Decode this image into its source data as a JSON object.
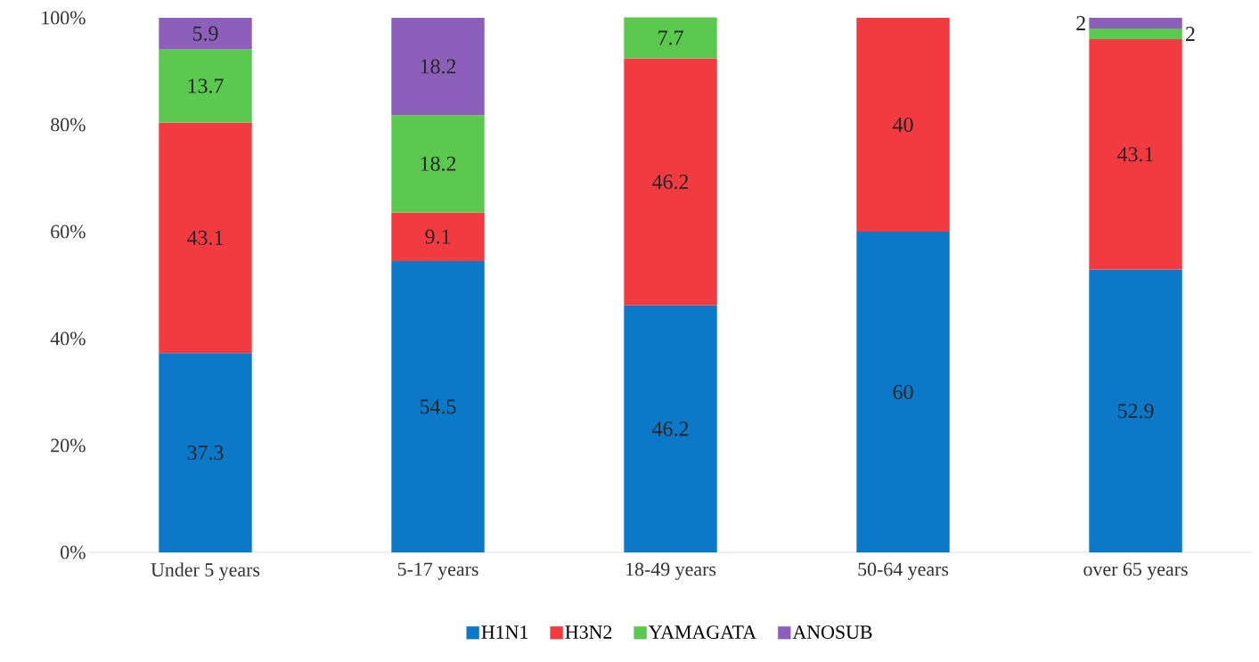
{
  "chart_data": {
    "type": "bar",
    "stacked": true,
    "data_labels": true,
    "categories": [
      "Under 5 years",
      "5-17 years",
      "18-49 years",
      "50-64 years",
      "over 65 years"
    ],
    "series": [
      {
        "name": "H1N1",
        "color": "#0b78c8",
        "values": [
          37.3,
          54.5,
          46.2,
          60,
          52.9
        ]
      },
      {
        "name": "H3N2",
        "color": "#f23b40",
        "values": [
          43.1,
          9.1,
          46.2,
          40,
          43.1
        ]
      },
      {
        "name": "YAMAGATA",
        "color": "#5bc850",
        "values": [
          13.7,
          18.2,
          7.7,
          null,
          2
        ]
      },
      {
        "name": "ANOSUB",
        "color": "#8c5fba",
        "values": [
          5.9,
          18.2,
          null,
          null,
          2
        ]
      }
    ],
    "ylim": [
      0,
      100
    ],
    "yticks": [
      {
        "value": 0,
        "label": "0%"
      },
      {
        "value": 20,
        "label": "20%"
      },
      {
        "value": 40,
        "label": "40%"
      },
      {
        "value": 60,
        "label": "60%"
      },
      {
        "value": 80,
        "label": "80%"
      },
      {
        "value": 100,
        "label": "100%"
      }
    ],
    "grid": false,
    "legend": "bottom"
  }
}
